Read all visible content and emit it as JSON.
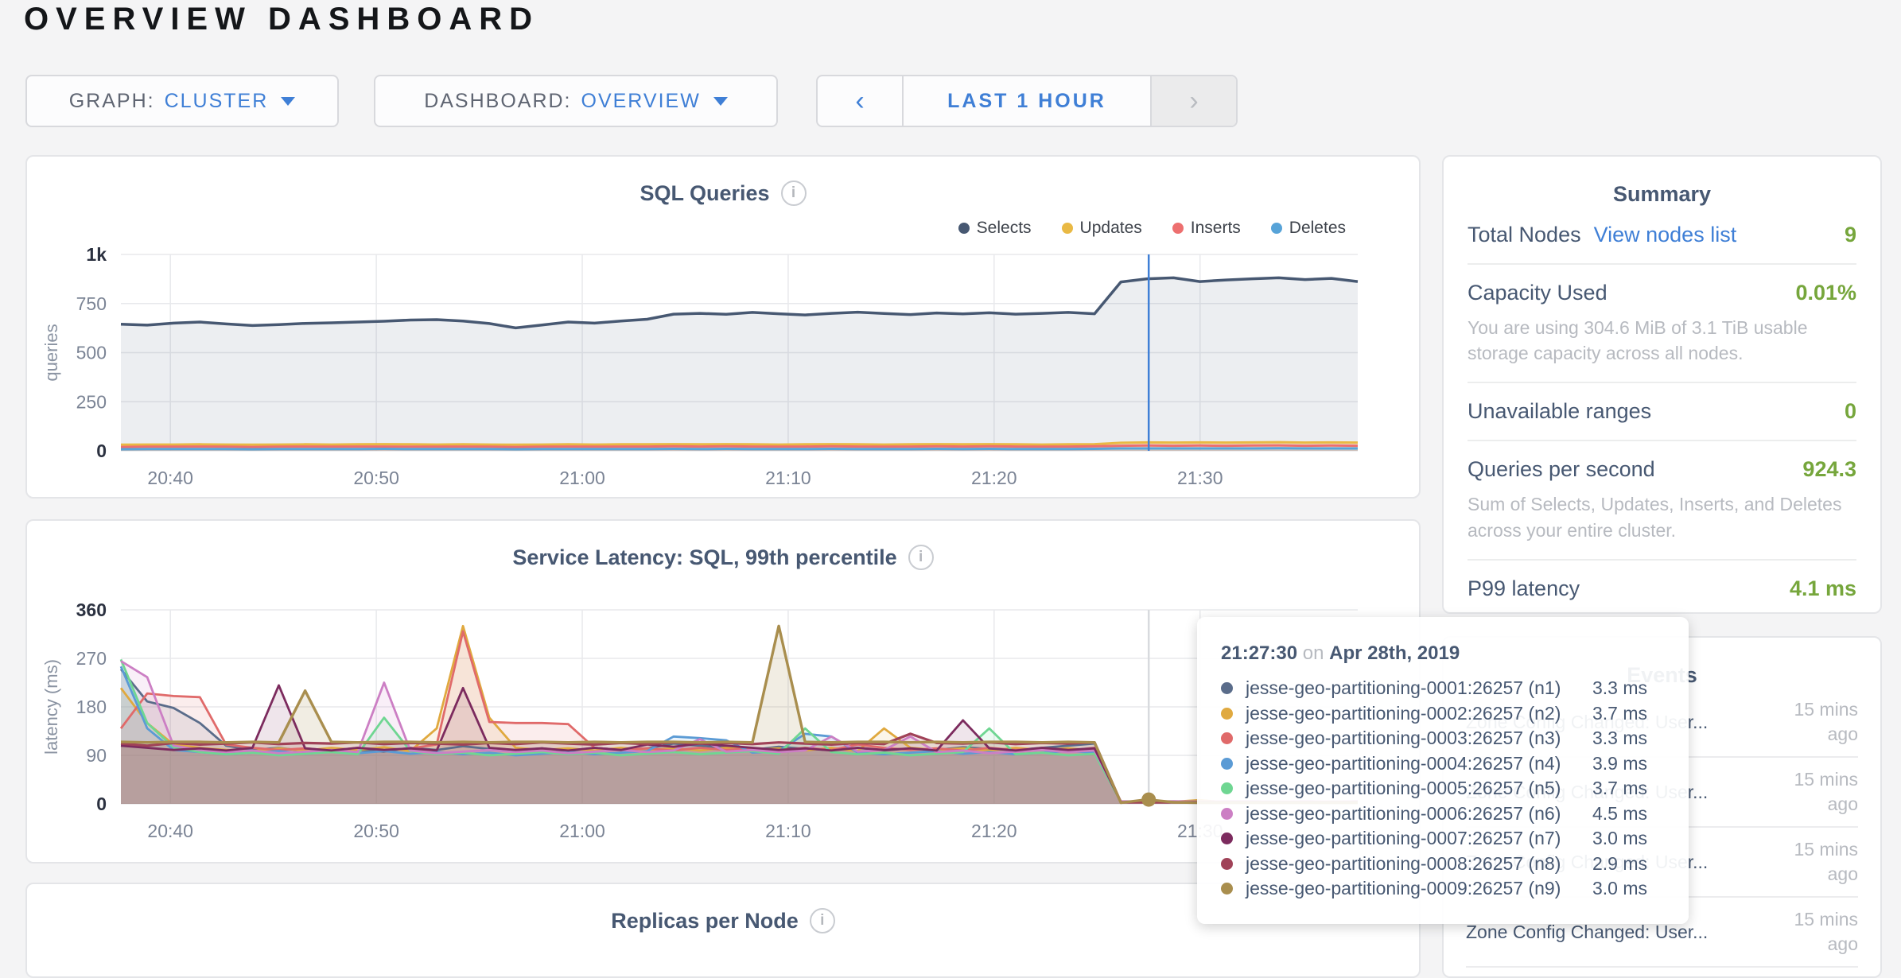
{
  "page": {
    "title": "OVERVIEW DASHBOARD"
  },
  "icons": {
    "info": "i",
    "prev": "‹",
    "next": "›"
  },
  "colors": {
    "accent_blue": "#3f7fd6",
    "value_green": "#76a63c",
    "slate_text": "#475872",
    "muted_text": "#b7bac0",
    "hover_line": "#3f7fd6",
    "page_bg": "#f4f4f5"
  },
  "toolbar": {
    "graph": {
      "label": "GRAPH:",
      "value": "CLUSTER"
    },
    "dashboard": {
      "label": "DASHBOARD:",
      "value": "OVERVIEW"
    },
    "time_range": {
      "label": "LAST 1 HOUR"
    }
  },
  "chart_data": [
    {
      "id": "sql",
      "type": "area",
      "title": "SQL Queries",
      "ylabel": "queries",
      "ylim": [
        0,
        1000
      ],
      "grid": true,
      "legend_position": "top-right",
      "y_ticks": [
        {
          "v": 1000,
          "label": "1k",
          "strong": true
        },
        {
          "v": 750,
          "label": "750"
        },
        {
          "v": 500,
          "label": "500"
        },
        {
          "v": 250,
          "label": "250"
        },
        {
          "v": 0,
          "label": "0",
          "strong": true
        }
      ],
      "x_ticks": [
        {
          "f": 0.04,
          "label": "20:40"
        },
        {
          "f": 0.2065,
          "label": "20:50"
        },
        {
          "f": 0.373,
          "label": "21:00"
        },
        {
          "f": 0.5395,
          "label": "21:10"
        },
        {
          "f": 0.706,
          "label": "21:20"
        },
        {
          "f": 0.8725,
          "label": "21:30"
        }
      ],
      "hover": {
        "fraction": 0.831,
        "color": "#3f7fd6"
      },
      "series": [
        {
          "name": "Selects",
          "color": "#475872",
          "width": 3.5,
          "fill_opacity": 0.1,
          "values": [
            645,
            640,
            650,
            656,
            646,
            638,
            643,
            649,
            652,
            656,
            660,
            666,
            668,
            661,
            648,
            626,
            641,
            656,
            650,
            661,
            670,
            696,
            700,
            695,
            705,
            698,
            692,
            700,
            706,
            699,
            694,
            702,
            697,
            703,
            696,
            700,
            705,
            698,
            860,
            876,
            881,
            862,
            870,
            876,
            881,
            872,
            878,
            862
          ]
        },
        {
          "name": "Updates",
          "color": "#e9b944",
          "width": 3,
          "fill_opacity": 0.18,
          "values": [
            31,
            32,
            32,
            33,
            32,
            31,
            32,
            33,
            32,
            33,
            34,
            33,
            32,
            33,
            32,
            31,
            32,
            33,
            32,
            33,
            33,
            34,
            33,
            34,
            33,
            32,
            33,
            34,
            33,
            32,
            33,
            34,
            33,
            34,
            33,
            32,
            33,
            34,
            41,
            43,
            42,
            43,
            42,
            43,
            44,
            42,
            43,
            42
          ]
        },
        {
          "name": "Inserts",
          "color": "#ed6f6f",
          "width": 3,
          "fill_opacity": 0.18,
          "values": [
            20,
            21,
            21,
            22,
            21,
            20,
            21,
            22,
            21,
            22,
            22,
            21,
            21,
            22,
            21,
            20,
            21,
            22,
            21,
            22,
            22,
            23,
            22,
            23,
            22,
            21,
            22,
            23,
            22,
            21,
            22,
            23,
            22,
            23,
            22,
            21,
            22,
            23,
            26,
            27,
            26,
            27,
            26,
            27,
            28,
            26,
            27,
            26
          ]
        },
        {
          "name": "Deletes",
          "color": "#57a3d8",
          "width": 3,
          "fill_opacity": 0.15,
          "values": [
            8,
            9,
            9,
            9,
            9,
            8,
            9,
            9,
            9,
            9,
            10,
            9,
            9,
            9,
            9,
            8,
            9,
            9,
            9,
            9,
            9,
            10,
            9,
            10,
            9,
            9,
            9,
            10,
            9,
            9,
            9,
            10,
            9,
            10,
            9,
            9,
            9,
            10,
            12,
            12,
            12,
            12,
            12,
            12,
            13,
            12,
            12,
            12
          ]
        }
      ]
    },
    {
      "id": "latency",
      "type": "area",
      "title": "Service Latency: SQL, 99th percentile",
      "ylabel": "latency (ms)",
      "ylim": [
        0,
        360
      ],
      "grid": true,
      "legend_position": "none",
      "y_ticks": [
        {
          "v": 360,
          "label": "360",
          "strong": true
        },
        {
          "v": 270,
          "label": "270"
        },
        {
          "v": 180,
          "label": "180"
        },
        {
          "v": 90,
          "label": "90"
        },
        {
          "v": 0,
          "label": "0",
          "strong": true
        }
      ],
      "x_ticks": [
        {
          "f": 0.04,
          "label": "20:40"
        },
        {
          "f": 0.2065,
          "label": "20:50"
        },
        {
          "f": 0.373,
          "label": "21:00"
        },
        {
          "f": 0.5395,
          "label": "21:10"
        },
        {
          "f": 0.706,
          "label": "21:20"
        },
        {
          "f": 0.8725,
          "label": "21:30"
        }
      ],
      "hover": {
        "fraction": 0.831,
        "color": "#d8dade",
        "dot": {
          "value": 8,
          "color": "#a98e4e"
        }
      },
      "series": [
        {
          "name": "jesse-geo-partitioning-0001:26257 (n1)",
          "color": "#5a6c8a",
          "width": 2.8,
          "fill_opacity": 0.12,
          "values": [
            250,
            190,
            178,
            150,
            108,
            100,
            104,
            98,
            102,
            100,
            97,
            104,
            100,
            107,
            102,
            99,
            103,
            98,
            104,
            100,
            103,
            112,
            108,
            104,
            100,
            106,
            102,
            100,
            104,
            99,
            103,
            100,
            105,
            102,
            100,
            104,
            108,
            112,
            3,
            3,
            4,
            3,
            3,
            4,
            3,
            3,
            3,
            3
          ]
        },
        {
          "name": "jesse-geo-partitioning-0002:26257 (n2)",
          "color": "#e0a93f",
          "width": 2.8,
          "fill_opacity": 0.12,
          "values": [
            215,
            150,
            110,
            104,
            100,
            98,
            103,
            99,
            104,
            100,
            105,
            98,
            140,
            330,
            160,
            104,
            100,
            103,
            99,
            104,
            100,
            103,
            99,
            104,
            100,
            103,
            99,
            104,
            98,
            140,
            104,
            100,
            103,
            99,
            104,
            100,
            103,
            99,
            4,
            3,
            4,
            7,
            3,
            4,
            4,
            4,
            4,
            4
          ]
        },
        {
          "name": "jesse-geo-partitioning-0003:26257 (n3)",
          "color": "#e06a6a",
          "width": 2.8,
          "fill_opacity": 0.12,
          "values": [
            140,
            205,
            200,
            198,
            110,
            104,
            100,
            103,
            99,
            104,
            100,
            103,
            110,
            320,
            152,
            150,
            150,
            148,
            104,
            100,
            103,
            99,
            104,
            100,
            103,
            99,
            104,
            100,
            110,
            104,
            100,
            103,
            99,
            104,
            100,
            103,
            99,
            104,
            3,
            4,
            3,
            3,
            3,
            4,
            3,
            3,
            4,
            3
          ]
        },
        {
          "name": "jesse-geo-partitioning-0004:26257 (n4)",
          "color": "#5b9bd5",
          "width": 2.8,
          "fill_opacity": 0.12,
          "values": [
            255,
            140,
            100,
            96,
            92,
            95,
            98,
            93,
            97,
            94,
            98,
            93,
            96,
            92,
            95,
            90,
            93,
            96,
            92,
            95,
            98,
            125,
            122,
            118,
            95,
            98,
            130,
            125,
            95,
            92,
            95,
            98,
            93,
            96,
            92,
            95,
            98,
            95,
            4,
            4,
            3,
            4,
            4,
            5,
            4,
            3,
            4,
            4
          ]
        },
        {
          "name": "jesse-geo-partitioning-0005:26257 (n5)",
          "color": "#6fd692",
          "width": 2.8,
          "fill_opacity": 0.12,
          "values": [
            268,
            150,
            105,
            96,
            92,
            95,
            90,
            93,
            96,
            92,
            160,
            98,
            92,
            95,
            90,
            93,
            96,
            92,
            95,
            90,
            93,
            96,
            92,
            95,
            98,
            93,
            140,
            96,
            92,
            95,
            90,
            93,
            96,
            140,
            92,
            95,
            90,
            93,
            4,
            3,
            4,
            4,
            3,
            4,
            4,
            3,
            4,
            4
          ]
        },
        {
          "name": "jesse-geo-partitioning-0006:26257 (n6)",
          "color": "#cc7fc4",
          "width": 2.8,
          "fill_opacity": 0.12,
          "values": [
            265,
            235,
            108,
            100,
            96,
            99,
            94,
            97,
            100,
            96,
            225,
            99,
            94,
            97,
            100,
            96,
            99,
            94,
            97,
            100,
            96,
            99,
            120,
            97,
            100,
            96,
            99,
            125,
            97,
            100,
            125,
            96,
            99,
            94,
            97,
            100,
            96,
            99,
            5,
            4,
            5,
            4,
            5,
            5,
            4,
            5,
            4,
            5
          ]
        },
        {
          "name": "jesse-geo-partitioning-0007:26257 (n7)",
          "color": "#7c2b5e",
          "width": 2.8,
          "fill_opacity": 0.12,
          "values": [
            108,
            104,
            100,
            103,
            99,
            104,
            220,
            103,
            99,
            104,
            100,
            103,
            99,
            215,
            104,
            100,
            103,
            99,
            104,
            100,
            110,
            106,
            112,
            108,
            104,
            100,
            103,
            99,
            104,
            100,
            103,
            99,
            155,
            103,
            99,
            104,
            100,
            103,
            3,
            3,
            3,
            3,
            3,
            3,
            3,
            3,
            3,
            3
          ]
        },
        {
          "name": "jesse-geo-partitioning-0008:26257 (n8)",
          "color": "#a04258",
          "width": 3.2,
          "fill_opacity": 0.12,
          "values": [
            112,
            108,
            113,
            110,
            112,
            114,
            111,
            113,
            112,
            114,
            111,
            113,
            112,
            110,
            113,
            111,
            114,
            112,
            110,
            113,
            111,
            114,
            112,
            113,
            111,
            114,
            112,
            110,
            113,
            111,
            130,
            113,
            112,
            114,
            111,
            113,
            112,
            114,
            3,
            3,
            3,
            3,
            3,
            3,
            3,
            3,
            3,
            3
          ]
        },
        {
          "name": "jesse-geo-partitioning-0009:26257 (n9)",
          "color": "#a98e4e",
          "width": 3.4,
          "fill_opacity": 0.16,
          "values": [
            115,
            114,
            115,
            115,
            114,
            115,
            114,
            210,
            115,
            114,
            115,
            115,
            114,
            115,
            114,
            115,
            115,
            114,
            115,
            114,
            115,
            115,
            114,
            115,
            114,
            330,
            115,
            114,
            115,
            115,
            114,
            115,
            114,
            115,
            115,
            114,
            115,
            114,
            2,
            8,
            3,
            2,
            2,
            2,
            2,
            2,
            2,
            2
          ]
        }
      ]
    },
    {
      "id": "replicas",
      "type": "area",
      "title": "Replicas per Node",
      "series": []
    }
  ],
  "summary": {
    "title": "Summary",
    "rows": [
      {
        "label": "Total Nodes",
        "link": "View nodes list",
        "value": "9"
      },
      {
        "label": "Capacity Used",
        "value": "0.01%",
        "subtext": "You are using 304.6 MiB of 3.1 TiB usable storage capacity across all nodes."
      },
      {
        "label": "Unavailable ranges",
        "value": "0"
      },
      {
        "label": "Queries per second",
        "value": "924.3",
        "subtext": "Sum of Selects, Updates, Inserts, and Deletes across your entire cluster."
      },
      {
        "label": "P99 latency",
        "value": "4.1 ms"
      }
    ]
  },
  "events": {
    "title": "Events",
    "rows": [
      {
        "text": "Zone Config Changed: User...",
        "time": "15 mins ago"
      },
      {
        "text": "Zone Config Changed: User...",
        "time": "15 mins ago"
      },
      {
        "text": "Zone Config Changed: User...",
        "time": "15 mins ago"
      },
      {
        "text": "Zone Config Changed: User...",
        "time": "15 mins ago"
      }
    ]
  },
  "tooltip": {
    "time": "21:27:30",
    "preposition": "on",
    "date": "Apr 28th, 2019",
    "rows": [
      {
        "color": "#5a6c8a",
        "name": "jesse-geo-partitioning-0001:26257 (n1)",
        "value": "3.3 ms"
      },
      {
        "color": "#e0a93f",
        "name": "jesse-geo-partitioning-0002:26257 (n2)",
        "value": "3.7 ms"
      },
      {
        "color": "#e06a6a",
        "name": "jesse-geo-partitioning-0003:26257 (n3)",
        "value": "3.3 ms"
      },
      {
        "color": "#5b9bd5",
        "name": "jesse-geo-partitioning-0004:26257 (n4)",
        "value": "3.9 ms"
      },
      {
        "color": "#6fd692",
        "name": "jesse-geo-partitioning-0005:26257 (n5)",
        "value": "3.7 ms"
      },
      {
        "color": "#cc7fc4",
        "name": "jesse-geo-partitioning-0006:26257 (n6)",
        "value": "4.5 ms"
      },
      {
        "color": "#7c2b5e",
        "name": "jesse-geo-partitioning-0007:26257 (n7)",
        "value": "3.0 ms"
      },
      {
        "color": "#a04258",
        "name": "jesse-geo-partitioning-0008:26257 (n8)",
        "value": "2.9 ms"
      },
      {
        "color": "#a98e4e",
        "name": "jesse-geo-partitioning-0009:26257 (n9)",
        "value": "3.0 ms"
      }
    ]
  }
}
